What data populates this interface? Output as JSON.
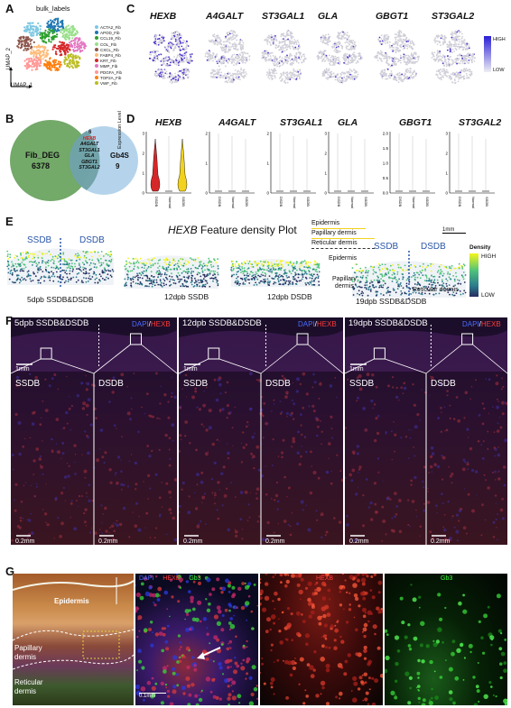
{
  "panel_a": {
    "letter": "A",
    "title": "bulk_labels",
    "axis_x": "UMAP_1",
    "axis_y": "UMAP_2",
    "legend": [
      {
        "label": "ACTA2_Fib",
        "color": "#7ec8e3"
      },
      {
        "label": "APOD_Fib",
        "color": "#1f77b4"
      },
      {
        "label": "CCL19_Fib",
        "color": "#2ca02c"
      },
      {
        "label": "COL_Fib",
        "color": "#98df8a"
      },
      {
        "label": "CXCL_Fib",
        "color": "#8c564b"
      },
      {
        "label": "FABP4_Fib",
        "color": "#ffbb78"
      },
      {
        "label": "KRT_Fib",
        "color": "#d62728"
      },
      {
        "label": "MMP_Fib",
        "color": "#e377c2"
      },
      {
        "label": "PDGFA_Fib",
        "color": "#ff9896"
      },
      {
        "label": "TOP2A_Fib",
        "color": "#ff7f0e"
      },
      {
        "label": "VWF_Fib",
        "color": "#bcbd22"
      }
    ]
  },
  "panel_b": {
    "letter": "B",
    "left_label": "Fib_DEG",
    "left_count": "6378",
    "right_label": "Gb4S",
    "right_count": "9",
    "overlap_count": "6",
    "overlap_genes": [
      "HEXB",
      "A4GALT",
      "ST3GAL1",
      "GLA",
      "GBGT1",
      "ST3GAL2"
    ]
  },
  "panel_c": {
    "letter": "C",
    "genes": [
      "HEXB",
      "A4GALT",
      "ST3GAL1",
      "GLA",
      "GBGT1",
      "ST3GAL2"
    ],
    "scale_high": "HIGH",
    "scale_low": "LOW"
  },
  "panel_d": {
    "letter": "D",
    "genes": [
      "HEXB",
      "A4GALT",
      "ST3GAL1",
      "GLA",
      "GBGT1",
      "ST3GAL2"
    ],
    "ylabel": "Expression Level",
    "groups": [
      "DSDB",
      "Normal",
      "SSDB"
    ],
    "hexb_group_colors": [
      "#d62728",
      "#e8e8e8",
      "#f2d21c"
    ],
    "hexb_ticks": [
      "0",
      "1",
      "2",
      "3"
    ],
    "other_ticks": [
      [
        "0",
        "1",
        "2"
      ],
      [
        "0",
        "1",
        "2"
      ],
      [
        "0",
        "1",
        "2",
        "3"
      ],
      [
        "0.0",
        "0.5",
        "1.0",
        "1.5",
        "2.0"
      ],
      [
        "0",
        "1",
        "2",
        "3"
      ]
    ]
  },
  "panel_e": {
    "letter": "E",
    "title_gene": "HEXB",
    "title_rest": "Feature density Plot",
    "legend_epidermis": "Epidermis",
    "legend_papillary": "Papillary dermis",
    "legend_reticular": "Reticular dermis",
    "legend_colors": [
      "#f2d21c",
      "#f2d21c",
      "#333333"
    ],
    "scale": "1mm",
    "density_title": "Density",
    "density_high": "HIGH",
    "density_low": "LOW",
    "ssdb": "SSDB",
    "dsdb": "DSDB",
    "captions": [
      "5dpb SSDB&DSDB",
      "12dpb SSDB",
      "12dpb DSDB",
      "19dpb SSDB&DSDB"
    ],
    "annot_epidermis": "Epidermis",
    "annot_papillary": "Papillary\ndermis",
    "annot_reticular": "Reticular dermis"
  },
  "panel_f": {
    "letter": "F",
    "columns": [
      {
        "title": "5dpb SSDB&DSDB",
        "left": "SSDB",
        "right": "DSDB"
      },
      {
        "title": "12dpb SSDB&DSDB",
        "left": "SSDB",
        "right": "DSDB"
      },
      {
        "title": "19dpb SSDB&DSDB",
        "left": "SSDB",
        "right": "DSDB"
      }
    ],
    "stain_dapi": "DAPI",
    "stain_hexb": "HEXB",
    "slash": "/",
    "scale_top": "1mm",
    "scale_bottom": "0.2mm"
  },
  "panel_g": {
    "letter": "G",
    "label_epidermis": "Epidermis",
    "label_papillary": "Papillary\ndermis",
    "label_reticular": "Reticular\ndermis",
    "merge_dapi": "DAPI",
    "merge_hexb": "HEXB",
    "merge_gb3": "Gb3",
    "hexb_only": "HEXB",
    "gb3_only": "Gb3",
    "scale": "0.1mm"
  }
}
